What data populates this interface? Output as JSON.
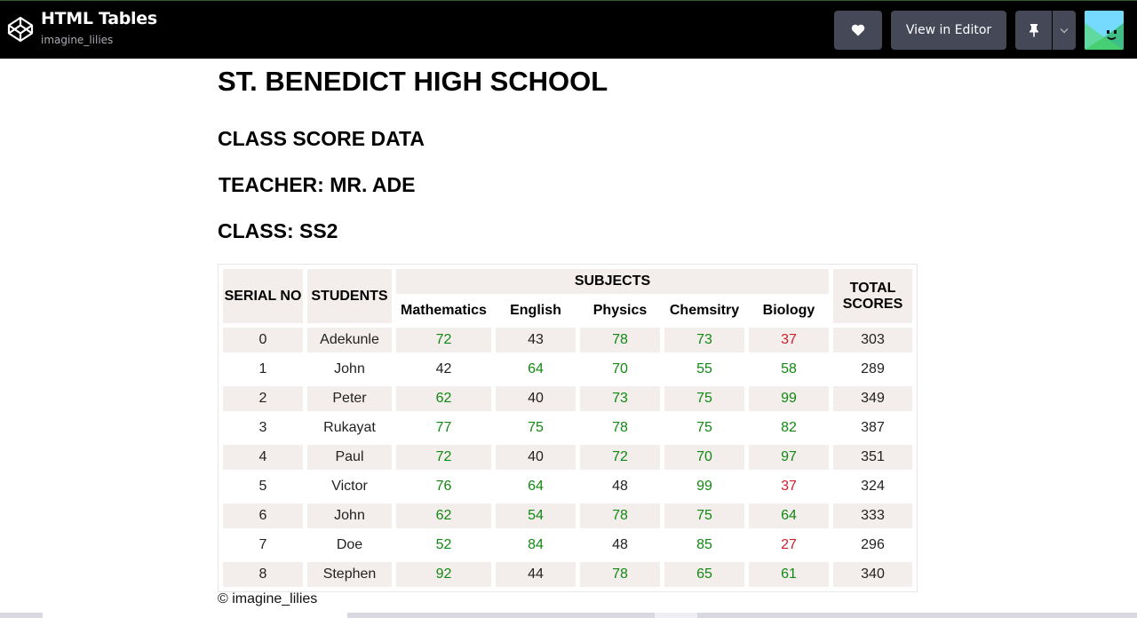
{
  "header": {
    "pen_title": "HTML Tables",
    "pen_author": "imagine_lilies",
    "view_in_editor_label": "View in Editor",
    "icons": [
      "codepen-logo-icon",
      "heart-icon",
      "pin-icon",
      "chevron-down-icon",
      "avatar"
    ]
  },
  "page": {
    "school_title": "ST. BENEDICT HIGH SCHOOL",
    "subtitle_1": "CLASS SCORE DATA",
    "subtitle_2": "TEACHER: MR. ADE",
    "subtitle_3": "CLASS: SS2",
    "footer": "© imagine_lilies"
  },
  "table": {
    "header_serial": "SERIAL NO",
    "header_students": "STUDENTS",
    "header_subjects": "SUBJECTS",
    "header_total": "TOTAL SCORES",
    "subjects": [
      "Mathematics",
      "English",
      "Physics",
      "Chemsitry",
      "Biology"
    ],
    "rows": [
      {
        "serial": "0",
        "name": "Adekunle",
        "scores": [
          "72",
          "43",
          "78",
          "73",
          "37"
        ],
        "total": "303"
      },
      {
        "serial": "1",
        "name": "John",
        "scores": [
          "42",
          "64",
          "70",
          "55",
          "58"
        ],
        "total": "289"
      },
      {
        "serial": "2",
        "name": "Peter",
        "scores": [
          "62",
          "40",
          "73",
          "75",
          "99"
        ],
        "total": "349"
      },
      {
        "serial": "3",
        "name": "Rukayat",
        "scores": [
          "77",
          "75",
          "78",
          "75",
          "82"
        ],
        "total": "387"
      },
      {
        "serial": "4",
        "name": "Paul",
        "scores": [
          "72",
          "40",
          "72",
          "70",
          "97"
        ],
        "total": "351"
      },
      {
        "serial": "5",
        "name": "Victor",
        "scores": [
          "76",
          "64",
          "48",
          "99",
          "37"
        ],
        "total": "324"
      },
      {
        "serial": "6",
        "name": "John",
        "scores": [
          "62",
          "54",
          "78",
          "75",
          "64"
        ],
        "total": "333"
      },
      {
        "serial": "7",
        "name": "Doe",
        "scores": [
          "52",
          "84",
          "48",
          "85",
          "27"
        ],
        "total": "296"
      },
      {
        "serial": "8",
        "name": "Stephen",
        "scores": [
          "92",
          "44",
          "78",
          "65",
          "61"
        ],
        "total": "340"
      }
    ]
  },
  "colors": {
    "topbar_bg": "#000000",
    "button_bg": "#444857",
    "row_shade": "#f3eeeb",
    "pass_green": "#118811",
    "fail_red": "#d0202a"
  }
}
